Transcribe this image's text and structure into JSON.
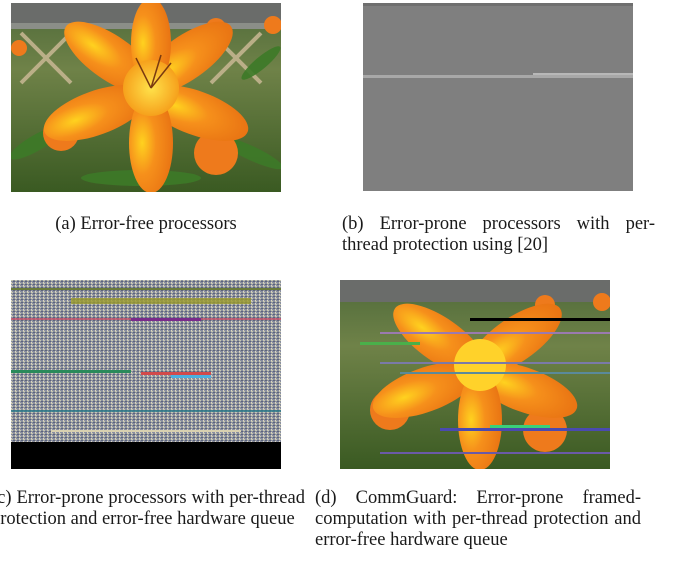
{
  "figure": {
    "panels": [
      {
        "id": "a",
        "image": "flower-image-error-free",
        "caption": "(a) Error-free processors"
      },
      {
        "id": "b",
        "image": "gray-corrupted-image",
        "caption": "(b) Error-prone processors with per-thread protection using [20]"
      },
      {
        "id": "c",
        "image": "noise-corrupted-image",
        "caption": "(c) Error-prone processors with per-thread protection and error-free hardware queue"
      },
      {
        "id": "d",
        "image": "flower-image-with-streaks",
        "caption": "(d) CommGuard: Error-prone framed-computation with per-thread protection and error-free hardware queue"
      }
    ]
  }
}
